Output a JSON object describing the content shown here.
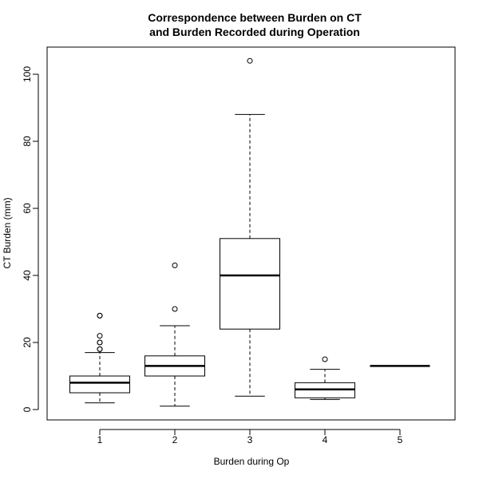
{
  "chart_data": {
    "type": "boxplot",
    "title_line1": "Correspondence between Burden on CT",
    "title_line2": "and Burden Recorded during Operation",
    "xlabel": "Burden during Op",
    "ylabel": "CT Burden (mm)",
    "ylim": [
      -3,
      108
    ],
    "yticks": [
      0,
      20,
      40,
      60,
      80,
      100
    ],
    "grid": false,
    "categories": [
      "1",
      "2",
      "3",
      "4",
      "5"
    ],
    "boxes": [
      {
        "category": "1",
        "whisker_low": 2,
        "q1": 5,
        "median": 8,
        "q3": 10,
        "whisker_high": 17,
        "outliers": [
          18,
          18,
          20,
          20,
          22,
          28,
          28
        ]
      },
      {
        "category": "2",
        "whisker_low": 1,
        "q1": 10,
        "median": 13,
        "q3": 16,
        "whisker_high": 25,
        "outliers": [
          30,
          43
        ]
      },
      {
        "category": "3",
        "whisker_low": 4,
        "q1": 24,
        "median": 40,
        "q3": 51,
        "whisker_high": 88,
        "outliers": [
          104
        ]
      },
      {
        "category": "4",
        "whisker_low": 3,
        "q1": 3.5,
        "median": 6,
        "q3": 8,
        "whisker_high": 12,
        "outliers": [
          15
        ]
      },
      {
        "category": "5",
        "whisker_low": 13,
        "q1": 13,
        "median": 13,
        "q3": 13,
        "whisker_high": 13,
        "outliers": []
      }
    ]
  }
}
